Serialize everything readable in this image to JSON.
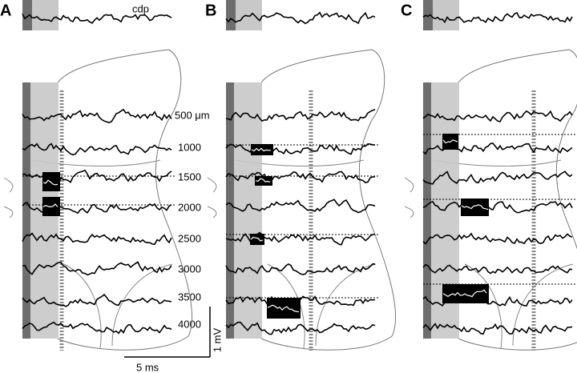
{
  "panels": [
    {
      "label": "A"
    },
    {
      "label": "B"
    },
    {
      "label": "C"
    }
  ],
  "cdp_label": "cdp",
  "depth_labels": [
    "500 μm",
    "1000",
    "1500",
    "2000",
    "2500",
    "3000",
    "3500",
    "4000"
  ],
  "scale_bar": {
    "vertical": "1 mV",
    "horizontal": "5 ms"
  }
}
